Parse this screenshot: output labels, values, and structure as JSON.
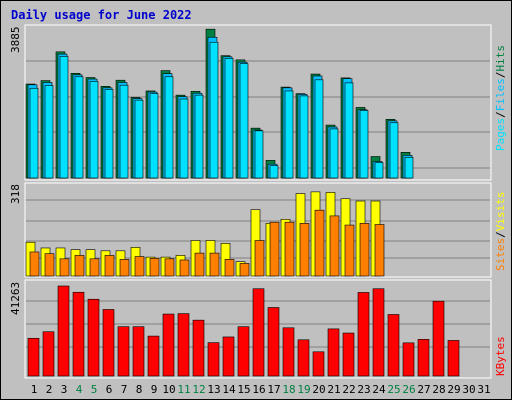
{
  "title": "Daily usage for June 2022",
  "colors": {
    "background": "#c0c0c0",
    "hits": "#008040",
    "files": "#00c0ff",
    "pages": "#00e0ff",
    "visits": "#ffff00",
    "sites": "#ff8000",
    "kbytes": "#ff0000",
    "weekend": "#008040",
    "weekday": "#000000",
    "title": "#0000cc"
  },
  "chart_data": [
    {
      "type": "bar",
      "panel": "hits-files-pages",
      "ymax_label": "3885",
      "ymax": 3885,
      "series": [
        {
          "name": "Hits",
          "values": [
            2450,
            2540,
            3290,
            2730,
            2620,
            2390,
            2550,
            2100,
            2270,
            2800,
            2160,
            2260,
            3880,
            3190,
            3080,
            1300,
            460,
            2370,
            2200,
            2710,
            1380,
            2610,
            1840,
            560,
            1530,
            670
          ]
        },
        {
          "name": "Files",
          "values": [
            2430,
            2490,
            3230,
            2690,
            2580,
            2350,
            2490,
            2070,
            2240,
            2720,
            2120,
            2210,
            3670,
            3160,
            3020,
            1250,
            360,
            2350,
            2180,
            2660,
            1330,
            2590,
            1780,
            430,
            1490,
            590
          ]
        },
        {
          "name": "Pages",
          "values": [
            2340,
            2410,
            3170,
            2640,
            2520,
            2310,
            2420,
            2030,
            2200,
            2640,
            2060,
            2160,
            3540,
            3120,
            2980,
            1230,
            320,
            2270,
            2140,
            2560,
            1280,
            2480,
            1760,
            400,
            1440,
            540
          ]
        }
      ]
    },
    {
      "type": "bar",
      "panel": "visits-sites",
      "ymax_label": "318",
      "ymax": 318,
      "series": [
        {
          "name": "Visits",
          "values": [
            118,
            98,
            98,
            92,
            92,
            88,
            88,
            100,
            66,
            66,
            72,
            124,
            124,
            114,
            50,
            232,
            184,
            198,
            288,
            294,
            292,
            270,
            262,
            262
          ]
        },
        {
          "name": "Sites",
          "values": [
            84,
            78,
            60,
            72,
            60,
            72,
            58,
            68,
            62,
            60,
            56,
            80,
            80,
            58,
            44,
            124,
            188,
            188,
            184,
            230,
            210,
            178,
            184,
            180
          ]
        }
      ]
    },
    {
      "type": "bar",
      "panel": "kbytes",
      "ymax_label": "41263",
      "ymax": 41263,
      "series": [
        {
          "name": "KBytes",
          "values": [
            17300,
            20300,
            41263,
            38400,
            35200,
            30500,
            22600,
            22600,
            18300,
            28400,
            28600,
            25600,
            15300,
            17900,
            22600,
            40000,
            31400,
            22100,
            16600,
            11100,
            21600,
            19700,
            38300,
            40000,
            28200,
            15200,
            16800,
            34300,
            16300
          ]
        }
      ]
    }
  ],
  "legend": {
    "hits": "Hits",
    "files": "Files",
    "pages": "Pages",
    "visits": "Visits",
    "sites": "Sites",
    "kbytes": "KBytes",
    "sep": "/"
  },
  "x_axis": {
    "days": [
      "1",
      "2",
      "3",
      "4",
      "5",
      "6",
      "7",
      "8",
      "9",
      "10",
      "11",
      "12",
      "13",
      "14",
      "15",
      "16",
      "17",
      "18",
      "19",
      "20",
      "21",
      "22",
      "23",
      "24",
      "25",
      "26",
      "27",
      "28",
      "29",
      "30",
      "31"
    ],
    "weekend_days": [
      "4",
      "5",
      "11",
      "12",
      "18",
      "19",
      "25",
      "26"
    ]
  }
}
